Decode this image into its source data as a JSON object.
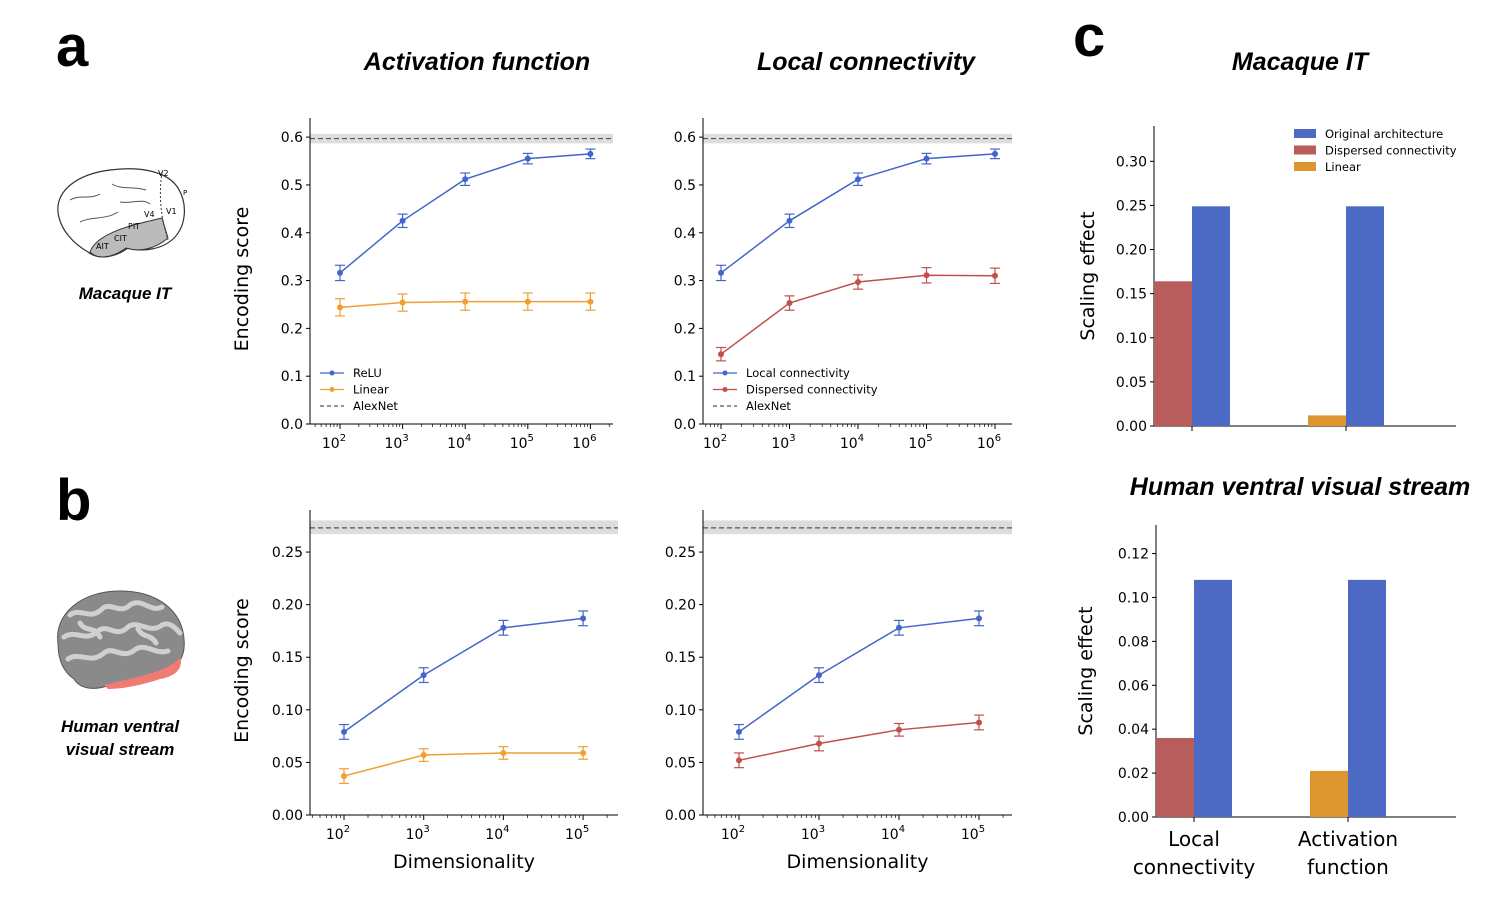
{
  "panels": {
    "a": "a",
    "b": "b",
    "c": "c"
  },
  "titles": {
    "activation": "Activation function",
    "local": "Local connectivity",
    "macaque_it": "Macaque IT",
    "human_stream": "Human ventral visual stream"
  },
  "brain_labels": {
    "macaque": "Macaque IT",
    "human_line1": "Human ventral",
    "human_line2": "visual stream",
    "macaque_areas": [
      "V2",
      "V1",
      "V4",
      "PIT",
      "CIT",
      "AIT",
      "P"
    ]
  },
  "colors": {
    "blue": "#4466cc",
    "orange": "#f0a030",
    "red": "#c0504d",
    "bar_blue": "#4c6ac4",
    "bar_red": "#b85c5c",
    "bar_orange": "#dd9530"
  },
  "chart_data": [
    {
      "type": "line",
      "ylabel": "Encoding score",
      "xlabel": "",
      "x": [
        2,
        3,
        4,
        5,
        6
      ],
      "xticks": [
        "10|2",
        "10|3",
        "10|4",
        "10|5",
        "10|6"
      ],
      "ylim": [
        0,
        0.64
      ],
      "yticks": [
        "0.0",
        "0.1",
        "0.2",
        "0.3",
        "0.4",
        "0.5",
        "0.6"
      ],
      "reference": {
        "name": "AlexNet",
        "value": 0.597,
        "band": [
          0.587,
          0.607
        ]
      },
      "series": [
        {
          "name": "ReLU",
          "color": "#4466cc",
          "values": [
            0.316,
            0.425,
            0.512,
            0.555,
            0.565
          ],
          "err": [
            0.016,
            0.014,
            0.013,
            0.011,
            0.01
          ]
        },
        {
          "name": "Linear",
          "color": "#f0a030",
          "values": [
            0.244,
            0.254,
            0.256,
            0.256,
            0.256
          ],
          "err": [
            0.018,
            0.018,
            0.018,
            0.018,
            0.018
          ]
        }
      ],
      "legend": [
        "ReLU",
        "Linear",
        "AlexNet"
      ]
    },
    {
      "type": "line",
      "ylabel": "",
      "xlabel": "",
      "x": [
        2,
        3,
        4,
        5,
        6
      ],
      "xticks": [
        "10|2",
        "10|3",
        "10|4",
        "10|5",
        "10|6"
      ],
      "ylim": [
        0,
        0.64
      ],
      "yticks": [
        "0.0",
        "0.1",
        "0.2",
        "0.3",
        "0.4",
        "0.5",
        "0.6"
      ],
      "reference": {
        "name": "AlexNet",
        "value": 0.597,
        "band": [
          0.587,
          0.607
        ]
      },
      "series": [
        {
          "name": "Local connectivity",
          "color": "#4466cc",
          "values": [
            0.316,
            0.425,
            0.512,
            0.555,
            0.565
          ],
          "err": [
            0.016,
            0.014,
            0.013,
            0.011,
            0.01
          ]
        },
        {
          "name": "Dispersed connectivity",
          "color": "#c0504d",
          "values": [
            0.146,
            0.253,
            0.297,
            0.311,
            0.31
          ],
          "err": [
            0.014,
            0.015,
            0.015,
            0.016,
            0.016
          ]
        }
      ],
      "legend": [
        "Local connectivity",
        "Dispersed connectivity",
        "AlexNet"
      ]
    },
    {
      "type": "line",
      "ylabel": "Encoding score",
      "xlabel": "Dimensionality",
      "x": [
        2,
        3,
        4,
        5
      ],
      "xticks": [
        "10|2",
        "10|3",
        "10|4",
        "10|5"
      ],
      "ylim": [
        0,
        0.29
      ],
      "yticks": [
        "0.00",
        "0.05",
        "0.10",
        "0.15",
        "0.20",
        "0.25"
      ],
      "reference": {
        "name": "AlexNet",
        "value": 0.273,
        "band": [
          0.267,
          0.28
        ]
      },
      "series": [
        {
          "name": "ReLU",
          "color": "#4466cc",
          "values": [
            0.079,
            0.133,
            0.178,
            0.187
          ],
          "err": [
            0.007,
            0.007,
            0.007,
            0.007
          ]
        },
        {
          "name": "Linear",
          "color": "#f0a030",
          "values": [
            0.037,
            0.057,
            0.059,
            0.059
          ],
          "err": [
            0.007,
            0.006,
            0.006,
            0.006
          ]
        }
      ]
    },
    {
      "type": "line",
      "ylabel": "",
      "xlabel": "Dimensionality",
      "x": [
        2,
        3,
        4,
        5
      ],
      "xticks": [
        "10|2",
        "10|3",
        "10|4",
        "10|5"
      ],
      "ylim": [
        0,
        0.29
      ],
      "yticks": [
        "0.00",
        "0.05",
        "0.10",
        "0.15",
        "0.20",
        "0.25"
      ],
      "reference": {
        "name": "AlexNet",
        "value": 0.273,
        "band": [
          0.267,
          0.28
        ]
      },
      "series": [
        {
          "name": "Local connectivity",
          "color": "#4466cc",
          "values": [
            0.079,
            0.133,
            0.178,
            0.187
          ],
          "err": [
            0.007,
            0.007,
            0.007,
            0.007
          ]
        },
        {
          "name": "Dispersed connectivity",
          "color": "#c0504d",
          "values": [
            0.052,
            0.068,
            0.081,
            0.088
          ],
          "err": [
            0.007,
            0.007,
            0.006,
            0.007
          ]
        }
      ]
    },
    {
      "type": "bar",
      "ylabel": "Scaling effect",
      "categories": [
        "",
        ""
      ],
      "ylim": [
        0,
        0.34
      ],
      "yticks": [
        "0.00",
        "0.05",
        "0.10",
        "0.15",
        "0.20",
        "0.25",
        "0.30"
      ],
      "series": [
        {
          "name": "Original architecture",
          "color": "#4c6ac4",
          "values": [
            0.249,
            0.249
          ]
        },
        {
          "name": "Dispersed connectivity",
          "color": "#b85c5c",
          "values": [
            0.164,
            null
          ]
        },
        {
          "name": "Linear",
          "color": "#dd9530",
          "values": [
            null,
            0.012
          ]
        }
      ],
      "legend": [
        "Original architecture",
        "Dispersed connectivity",
        "Linear"
      ]
    },
    {
      "type": "bar",
      "ylabel": "Scaling effect",
      "categories": [
        "Local|connectivity",
        "Activation|function"
      ],
      "ylim": [
        0,
        0.133
      ],
      "yticks": [
        "0.00",
        "0.02",
        "0.04",
        "0.06",
        "0.08",
        "0.10",
        "0.12"
      ],
      "series": [
        {
          "name": "Original architecture",
          "color": "#4c6ac4",
          "values": [
            0.108,
            0.108
          ]
        },
        {
          "name": "Dispersed connectivity",
          "color": "#b85c5c",
          "values": [
            0.036,
            null
          ]
        },
        {
          "name": "Linear",
          "color": "#dd9530",
          "values": [
            null,
            0.021
          ]
        }
      ]
    }
  ]
}
